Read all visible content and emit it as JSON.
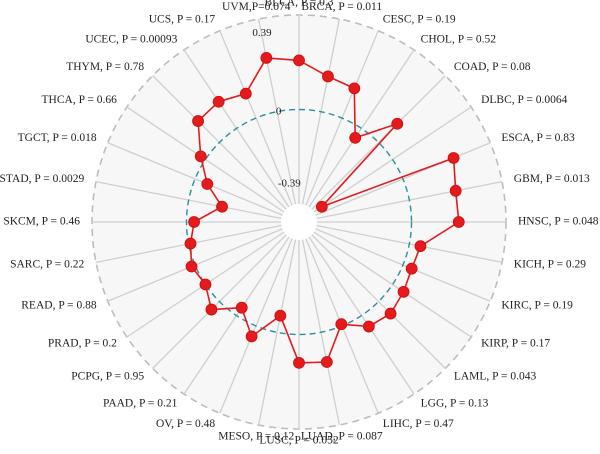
{
  "chart_data": {
    "type": "radar",
    "title": "",
    "radial_ticks": [
      -0.39,
      0,
      0.39
    ],
    "radial_tick_labels": [
      "-0.39",
      "0",
      "0.39"
    ],
    "rmin": -0.5,
    "rmax": 0.5,
    "reference_ring": 0,
    "grid": true,
    "colors": {
      "series": "#e41a1c",
      "ring": "#2a8fa0",
      "outer": "#bdbdbd",
      "spoke": "#cfcfcf",
      "fill": "#f7f7f7"
    },
    "categories": [
      "BLCA, P = 0.3",
      "BRCA, P = 0.011",
      "CESC, P = 0.19",
      "CHOL, P = 0.52",
      "COAD, P = 0.08",
      "DLBC, P = 0.0064",
      "ESCA, P = 0.83",
      "GBM, P = 0.013",
      "HNSC, P = 0.048",
      "KICH, P = 0.29",
      "KIRC, P = 0.19",
      "KIRP, P = 0.17",
      "LAML, P = 0.043",
      "LGG, P = 0.13",
      "LIHC, P = 0.47",
      "LUAD, P = 0.087",
      "LUSC, P = 0.052",
      "MESO, P = 0.12",
      "OV, P = 0.48",
      "PAAD, P = 0.21",
      "PCPG, P = 0.95",
      "PRAD, P = 0.2",
      "READ, P = 0.88",
      "SARC, P = 0.22",
      "SKCM, P = 0.46",
      "STAD, P = 0.0029",
      "TGCT, P = 0.018",
      "THCA, P = 0.66",
      "THYM, P = 0.78",
      "UCEC, P = 0.00093",
      "UCS, P = 0.17",
      "UVM,P=0.074"
    ],
    "values": [
      0.26,
      0.19,
      0.17,
      -0.06,
      0.14,
      -0.45,
      0.29,
      0.25,
      0.25,
      0.06,
      0.05,
      0.07,
      0.09,
      0.07,
      -0.01,
      0.16,
      0.15,
      -0.09,
      0.06,
      -0.05,
      0.06,
      0.0,
      0.02,
      -0.01,
      -0.04,
      -0.18,
      -0.07,
      0.03,
      0.16,
      0.17,
      0.14,
      0.29
    ]
  }
}
